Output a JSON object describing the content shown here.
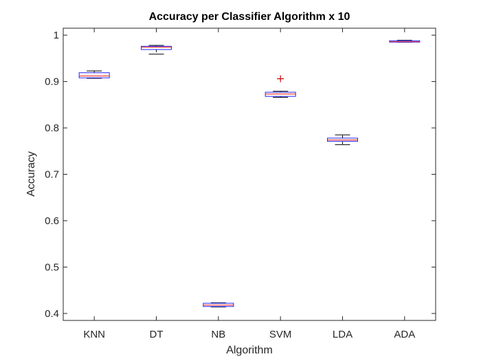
{
  "chart_data": {
    "type": "boxplot",
    "title": "Accuracy per Classifier Algorithm x 10",
    "xlabel": "Algorithm",
    "ylabel": "Accuracy",
    "ylim": [
      0.385,
      1.015
    ],
    "yticks": [
      0.4,
      0.5,
      0.6,
      0.7,
      0.8,
      0.9,
      1
    ],
    "ytick_labels": [
      "0.4",
      "0.5",
      "0.6",
      "0.7",
      "0.8",
      "0.9",
      "1"
    ],
    "grid": false,
    "categories": [
      "KNN",
      "DT",
      "NB",
      "SVM",
      "LDA",
      "ADA"
    ],
    "boxes": [
      {
        "name": "KNN",
        "whisker_low": 0.907,
        "q1": 0.908,
        "median": 0.912,
        "q3": 0.919,
        "whisker_high": 0.923,
        "outliers": []
      },
      {
        "name": "DT",
        "whisker_low": 0.959,
        "q1": 0.969,
        "median": 0.974,
        "q3": 0.976,
        "whisker_high": 0.978,
        "outliers": []
      },
      {
        "name": "NB",
        "whisker_low": 0.414,
        "q1": 0.415,
        "median": 0.418,
        "q3": 0.422,
        "whisker_high": 0.423,
        "outliers": []
      },
      {
        "name": "SVM",
        "whisker_low": 0.866,
        "q1": 0.868,
        "median": 0.873,
        "q3": 0.877,
        "whisker_high": 0.879,
        "outliers": [
          0.906
        ]
      },
      {
        "name": "LDA",
        "whisker_low": 0.764,
        "q1": 0.771,
        "median": 0.774,
        "q3": 0.778,
        "whisker_high": 0.785,
        "outliers": []
      },
      {
        "name": "ADA",
        "whisker_low": 0.985,
        "q1": 0.985,
        "median": 0.986,
        "q3": 0.988,
        "whisker_high": 0.989,
        "outliers": []
      }
    ],
    "colors": {
      "box": "#1f1fff",
      "median": "#e8191c",
      "whisker": "#000000",
      "outlier": "#cc0000",
      "axes": "#262626"
    }
  }
}
